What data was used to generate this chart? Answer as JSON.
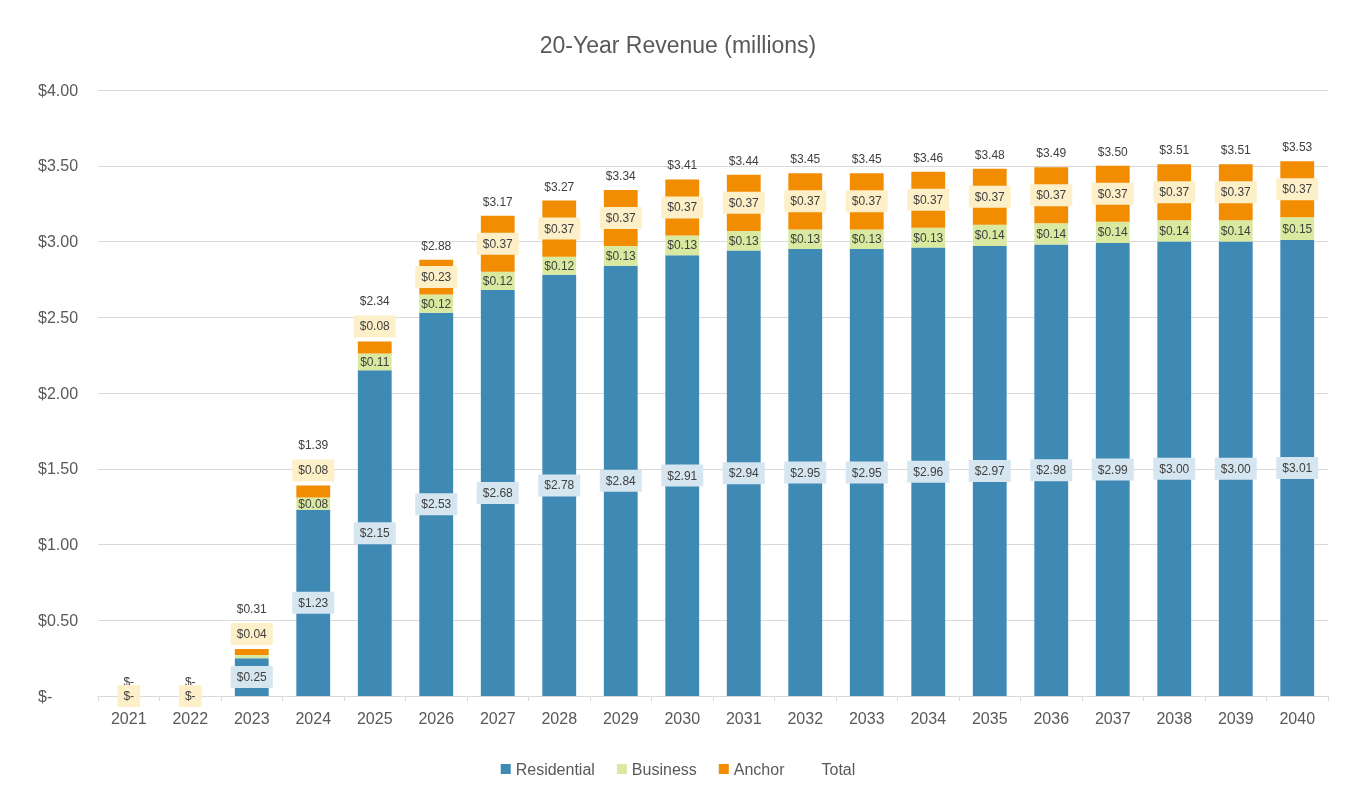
{
  "chart_data": {
    "type": "bar",
    "title": "20-Year Revenue (millions)",
    "stacked": true,
    "grid": "y",
    "legend": "bottom",
    "categories": [
      "2021",
      "2022",
      "2023",
      "2024",
      "2025",
      "2026",
      "2027",
      "2028",
      "2029",
      "2030",
      "2031",
      "2032",
      "2033",
      "2034",
      "2035",
      "2036",
      "2037",
      "2038",
      "2039",
      "2040"
    ],
    "ylim": [
      0,
      4
    ],
    "yticks": [
      {
        "value": 0,
        "label": "$-"
      },
      {
        "value": 0.5,
        "label": "$0.50"
      },
      {
        "value": 1,
        "label": "$1.00"
      },
      {
        "value": 1.5,
        "label": "$1.50"
      },
      {
        "value": 2,
        "label": "$2.00"
      },
      {
        "value": 2.5,
        "label": "$2.50"
      },
      {
        "value": 3,
        "label": "$3.00"
      },
      {
        "value": 3.5,
        "label": "$3.50"
      },
      {
        "value": 4,
        "label": "$4.00"
      }
    ],
    "series": [
      {
        "name": "Residential",
        "color": "#3f89b5",
        "values": [
          0,
          0,
          0.25,
          1.23,
          2.15,
          2.53,
          2.68,
          2.78,
          2.84,
          2.91,
          2.94,
          2.95,
          2.95,
          2.96,
          2.97,
          2.98,
          2.99,
          3.0,
          3.0,
          3.01
        ],
        "value_labels": [
          null,
          null,
          "$0.25",
          "$1.23",
          "$2.15",
          "$2.53",
          "$2.68",
          "$2.78",
          "$2.84",
          "$2.91",
          "$2.94",
          "$2.95",
          "$2.95",
          "$2.96",
          "$2.97",
          "$2.98",
          "$2.99",
          "$3.00",
          "$3.00",
          "$3.01"
        ]
      },
      {
        "name": "Business",
        "color": "#d9e9a0",
        "values": [
          0,
          0,
          0.02,
          0.08,
          0.11,
          0.12,
          0.12,
          0.12,
          0.13,
          0.13,
          0.13,
          0.13,
          0.13,
          0.13,
          0.14,
          0.14,
          0.14,
          0.14,
          0.14,
          0.15
        ],
        "value_labels": [
          null,
          null,
          null,
          "$0.08",
          "$0.11",
          "$0.12",
          "$0.12",
          "$0.12",
          "$0.13",
          "$0.13",
          "$0.13",
          "$0.13",
          "$0.13",
          "$0.13",
          "$0.14",
          "$0.14",
          "$0.14",
          "$0.14",
          "$0.14",
          "$0.15"
        ]
      },
      {
        "name": "Anchor",
        "color": "#f28c00",
        "values": [
          0,
          0,
          0.04,
          0.08,
          0.08,
          0.23,
          0.37,
          0.37,
          0.37,
          0.37,
          0.37,
          0.37,
          0.37,
          0.37,
          0.37,
          0.37,
          0.37,
          0.37,
          0.37,
          0.37
        ],
        "value_labels": [
          "$-",
          "$-",
          "$0.04",
          "$0.08",
          "$0.08",
          "$0.23",
          "$0.37",
          "$0.37",
          "$0.37",
          "$0.37",
          "$0.37",
          "$0.37",
          "$0.37",
          "$0.37",
          "$0.37",
          "$0.37",
          "$0.37",
          "$0.37",
          "$0.37",
          "$0.37"
        ]
      },
      {
        "name": "Total",
        "type": "line",
        "values": [
          null,
          null,
          null,
          null,
          null,
          null,
          null,
          null,
          null,
          null,
          null,
          null,
          null,
          null,
          null,
          null,
          null,
          null,
          null,
          null
        ]
      }
    ],
    "totals": [
      "$-",
      "$-",
      "$0.31",
      "$1.39",
      "$2.34",
      "$2.88",
      "$3.17",
      "$3.27",
      "$3.34",
      "$3.41",
      "$3.44",
      "$3.45",
      "$3.45",
      "$3.46",
      "$3.48",
      "$3.49",
      "$3.50",
      "$3.51",
      "$3.51",
      "$3.53"
    ]
  }
}
